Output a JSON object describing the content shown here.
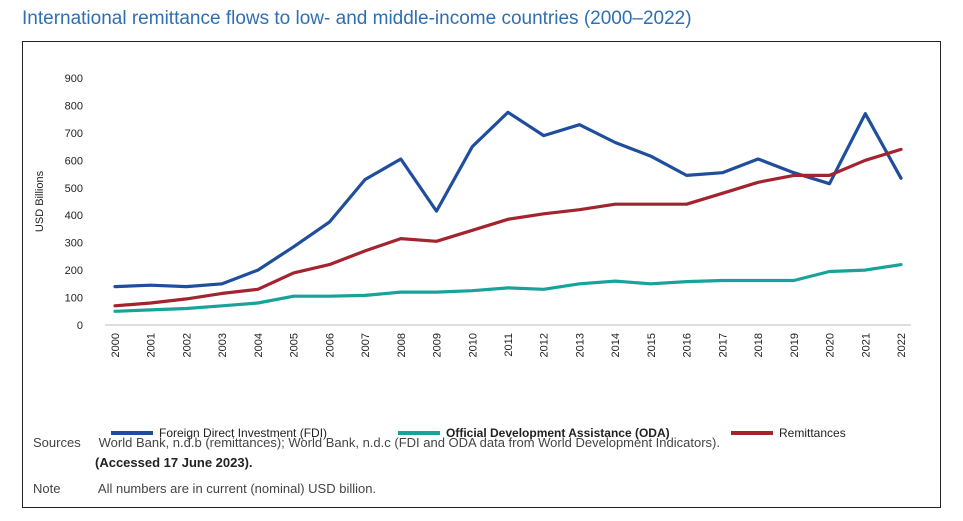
{
  "title": "International remittance flows to low- and middle-income countries (2000–2022)",
  "chart_data": {
    "type": "line",
    "ylabel": "USD Billions",
    "ylim": [
      0,
      900
    ],
    "yticks": [
      0,
      100,
      200,
      300,
      400,
      500,
      600,
      700,
      800,
      900
    ],
    "grid": false,
    "legend_position": "bottom",
    "categories": [
      "2000",
      "2001",
      "2002",
      "2003",
      "2004",
      "2005",
      "2006",
      "2007",
      "2008",
      "2009",
      "2010",
      "2011",
      "2012",
      "2013",
      "2014",
      "2015",
      "2016",
      "2017",
      "2018",
      "2019",
      "2020",
      "2021",
      "2022"
    ],
    "series": [
      {
        "name": "Foreign Direct Investment (FDI)",
        "color": "#1f4e9c",
        "values": [
          140,
          145,
          140,
          150,
          200,
          285,
          375,
          530,
          605,
          415,
          650,
          775,
          690,
          730,
          665,
          615,
          545,
          555,
          605,
          555,
          515,
          770,
          535
        ]
      },
      {
        "name": "Official Development Assistance (ODA)",
        "color": "#17a39a",
        "values": [
          50,
          55,
          60,
          70,
          80,
          105,
          105,
          108,
          120,
          120,
          125,
          135,
          130,
          150,
          160,
          150,
          158,
          162,
          162,
          162,
          195,
          200,
          220
        ]
      },
      {
        "name": "Remittances",
        "color": "#a3242f",
        "values": [
          70,
          80,
          95,
          115,
          130,
          190,
          220,
          270,
          315,
          305,
          345,
          385,
          405,
          420,
          440,
          440,
          440,
          480,
          520,
          545,
          545,
          600,
          640
        ]
      }
    ]
  },
  "sources": {
    "label": "Sources",
    "text": "World Bank, n.d.b (remittances); World Bank, n.d.c (FDI and ODA data from World Development Indicators).",
    "accessed": "(Accessed 17  June 2023)."
  },
  "note": {
    "label": "Note",
    "text": "All numbers are in current (nominal) USD billion."
  }
}
